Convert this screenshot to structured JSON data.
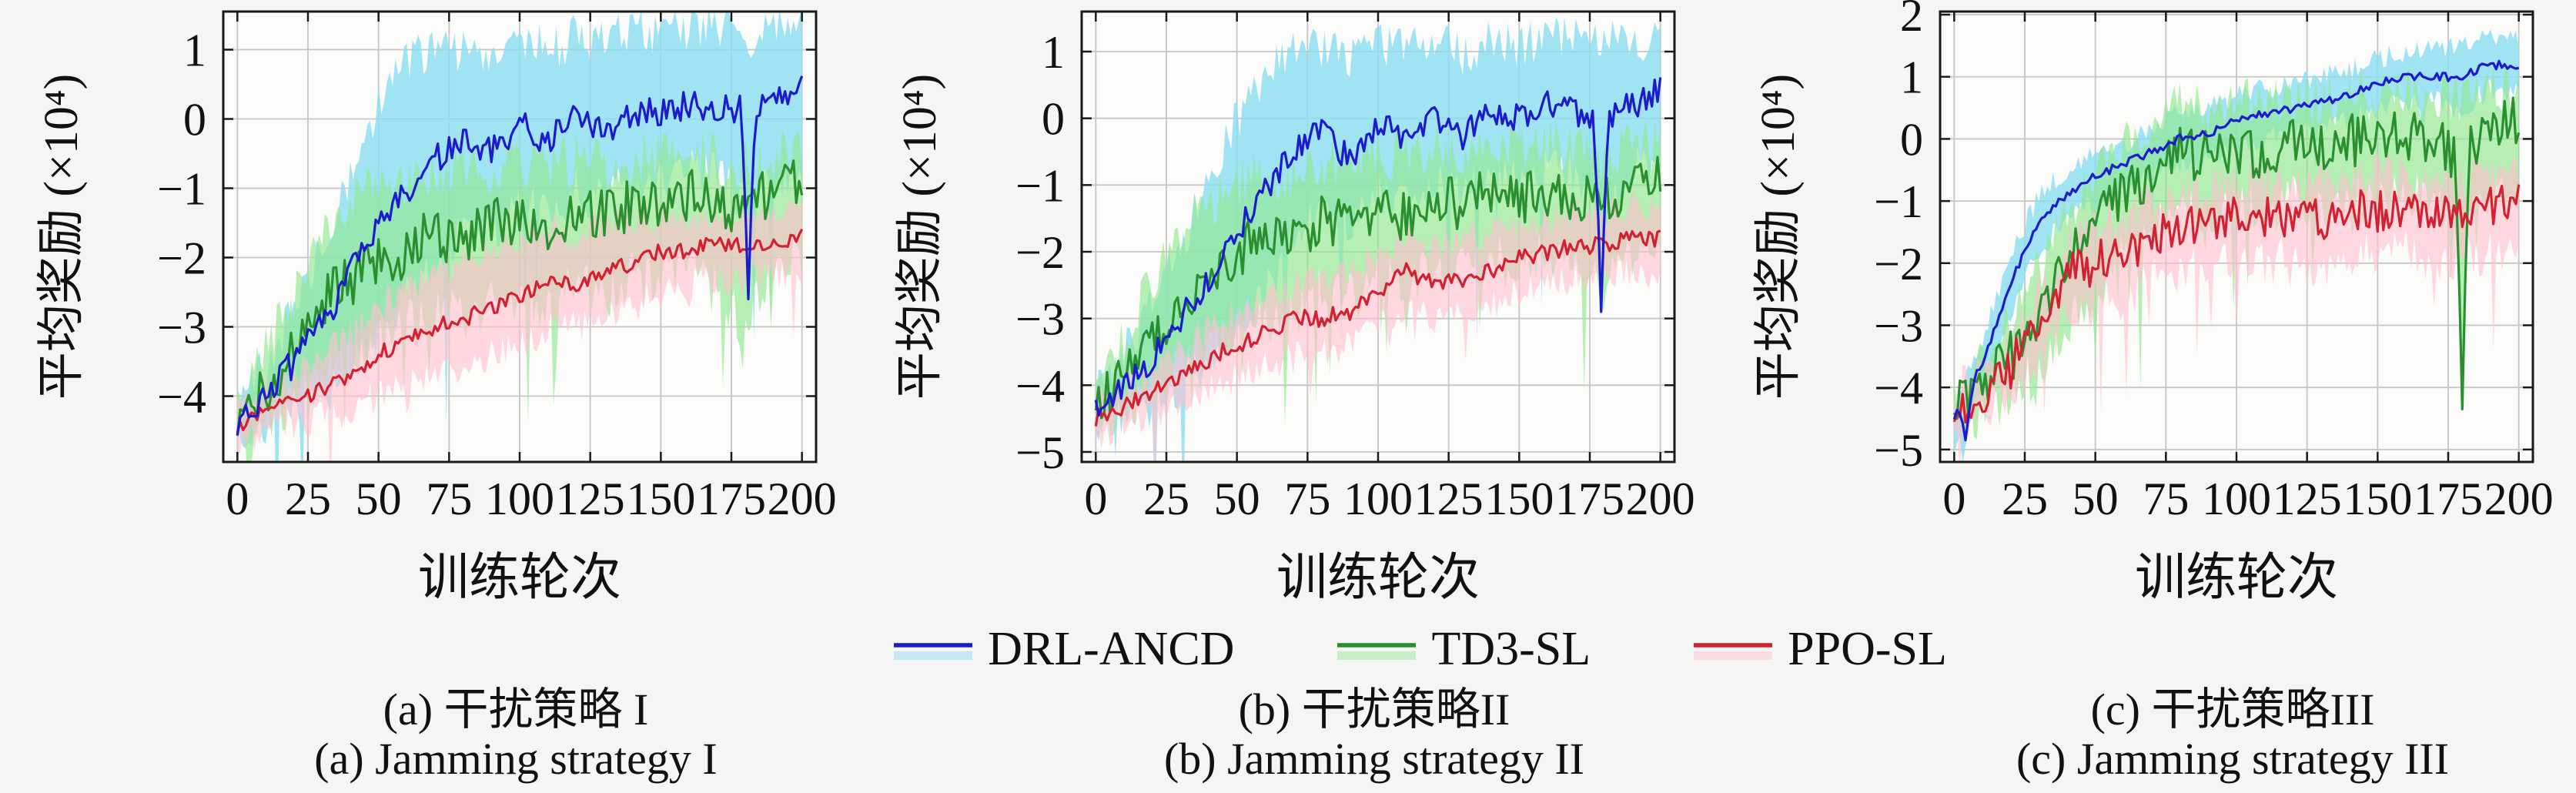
{
  "figure": {
    "background": "#f5f5f4",
    "plot_background": "#fbfbfa",
    "grid_color": "#c6c6c6",
    "axis_color": "#1a1a1a",
    "xlabel": "训练轮次",
    "ylabel": "平均奖励 (×10⁴)",
    "legend": [
      {
        "label": "DRL-ANCD",
        "color": "#1c1ccd",
        "band": "#8adef2"
      },
      {
        "label": "TD3-SL",
        "color": "#2a8f2e",
        "band": "#90e890"
      },
      {
        "label": "PPO-SL",
        "color": "#d42030",
        "band": "#ffc0ce"
      }
    ]
  },
  "captions": [
    {
      "zh": "(a) 干扰策略 I",
      "en": "(a) Jamming strategy I"
    },
    {
      "zh": "(b) 干扰策略II",
      "en": "(b) Jamming strategy II"
    },
    {
      "zh": "(c) 干扰策略III",
      "en": "(c) Jamming strategy III"
    }
  ],
  "chart_data": [
    {
      "id": "a",
      "type": "line",
      "xlabel": "训练轮次",
      "ylabel": "平均奖励 (×10⁴)",
      "xticks": [
        0,
        25,
        50,
        75,
        100,
        125,
        150,
        175,
        200
      ],
      "yticks": [
        1,
        0,
        -1,
        -2,
        -3,
        -4
      ],
      "xlim": [
        -5,
        205
      ],
      "ylim": [
        -4.95,
        1.55
      ],
      "anchor_step": 10,
      "series": [
        {
          "name": "DRL-ANCD",
          "color": "#1c1ccd",
          "band_color": "#8adef2",
          "band_opacity": 0.8,
          "seed": 7,
          "jitter_line": 0.22,
          "jitter_band": 0.35,
          "band_spike_prob": 0.05,
          "band_spike_depth": 2.4,
          "mean": [
            -4.35,
            -4.0,
            -3.5,
            -3.0,
            -2.2,
            -1.6,
            -1.0,
            -0.6,
            -0.3,
            -0.5,
            -0.1,
            -0.3,
            0.0,
            -0.2,
            0.1,
            0.1,
            0.2,
            0.2,
            0.1,
            0.2,
            0.5
          ],
          "band_upper": [
            -4.1,
            -3.6,
            -2.8,
            -1.8,
            -0.8,
            0.2,
            0.8,
            1.0,
            1.0,
            1.0,
            1.1,
            1.0,
            1.2,
            1.1,
            1.3,
            1.2,
            1.3,
            1.3,
            1.2,
            1.3,
            1.3
          ],
          "band_lower": [
            -4.6,
            -4.4,
            -4.2,
            -4.0,
            -3.6,
            -3.2,
            -2.6,
            -2.0,
            -1.6,
            -1.6,
            -1.2,
            -1.3,
            -1.0,
            -1.2,
            -0.9,
            -0.9,
            -0.8,
            -0.8,
            -1.2,
            -0.9,
            -0.6
          ],
          "spikes": [
            {
              "x": 181,
              "y": -2.6
            }
          ]
        },
        {
          "name": "TD3-SL",
          "color": "#2a8f2e",
          "band_color": "#90e890",
          "band_opacity": 0.66,
          "seed": 8,
          "jitter_line": 0.4,
          "jitter_band": 0.4,
          "band_spike_prob": 0.07,
          "band_spike_depth": 1.7,
          "mean": [
            -4.3,
            -3.9,
            -3.3,
            -2.6,
            -2.3,
            -2.1,
            -1.9,
            -1.6,
            -1.8,
            -1.5,
            -1.4,
            -1.6,
            -1.3,
            -1.4,
            -1.2,
            -1.3,
            -1.1,
            -1.3,
            -1.5,
            -0.9,
            -0.8
          ],
          "band_upper": [
            -4.0,
            -3.4,
            -2.6,
            -1.6,
            -1.2,
            -1.0,
            -0.9,
            -0.7,
            -0.8,
            -0.7,
            -0.6,
            -0.7,
            -0.6,
            -0.7,
            -0.6,
            -0.6,
            -0.5,
            -0.6,
            -0.7,
            -0.5,
            -0.5
          ],
          "band_lower": [
            -4.6,
            -4.3,
            -4.0,
            -3.6,
            -3.4,
            -3.2,
            -3.0,
            -2.8,
            -2.9,
            -2.6,
            -2.5,
            -2.7,
            -2.4,
            -2.5,
            -2.3,
            -2.4,
            -2.2,
            -2.5,
            -3.0,
            -2.0,
            -2.0
          ],
          "spikes": []
        },
        {
          "name": "PPO-SL",
          "color": "#d42030",
          "band_color": "#ffc0ce",
          "band_opacity": 0.62,
          "seed": 9,
          "jitter_line": 0.12,
          "jitter_band": 0.25,
          "band_spike_prob": 0.04,
          "band_spike_depth": 0.9,
          "mean": [
            -4.45,
            -4.2,
            -4.1,
            -3.9,
            -3.7,
            -3.4,
            -3.2,
            -3.0,
            -2.9,
            -2.7,
            -2.6,
            -2.3,
            -2.4,
            -2.2,
            -2.1,
            -1.9,
            -1.9,
            -1.8,
            -1.8,
            -1.8,
            -1.7
          ],
          "band_upper": [
            -4.2,
            -3.9,
            -3.7,
            -3.4,
            -3.1,
            -2.7,
            -2.4,
            -2.2,
            -2.0,
            -1.9,
            -1.8,
            -1.6,
            -1.7,
            -1.5,
            -1.5,
            -1.4,
            -1.4,
            -1.4,
            -1.4,
            -1.4,
            -1.3
          ],
          "band_lower": [
            -4.7,
            -4.5,
            -4.4,
            -4.3,
            -4.2,
            -4.0,
            -3.9,
            -3.7,
            -3.6,
            -3.4,
            -3.3,
            -3.0,
            -3.0,
            -2.8,
            -2.7,
            -2.5,
            -2.4,
            -2.3,
            -2.3,
            -2.2,
            -2.2
          ],
          "spikes": []
        }
      ]
    },
    {
      "id": "b",
      "type": "line",
      "xlabel": "训练轮次",
      "ylabel": "平均奖励 (×10⁴)",
      "xticks": [
        0,
        25,
        50,
        75,
        100,
        125,
        150,
        175,
        200
      ],
      "yticks": [
        1,
        0,
        -1,
        -2,
        -3,
        -4,
        -5
      ],
      "xlim": [
        -5,
        205
      ],
      "ylim": [
        -5.15,
        1.6
      ],
      "anchor_step": 10,
      "series": [
        {
          "name": "DRL-ANCD",
          "color": "#1c1ccd",
          "band_color": "#8adef2",
          "band_opacity": 0.8,
          "seed": 17,
          "jitter_line": 0.22,
          "jitter_band": 0.35,
          "band_spike_prob": 0.05,
          "band_spike_depth": 2.6,
          "mean": [
            -4.3,
            -4.0,
            -3.6,
            -3.0,
            -2.4,
            -1.7,
            -1.1,
            -0.5,
            -0.2,
            -0.6,
            -0.1,
            -0.3,
            0.0,
            -0.3,
            0.1,
            0.0,
            0.2,
            0.1,
            0.0,
            0.2,
            0.4
          ],
          "band_upper": [
            -4.0,
            -3.5,
            -2.8,
            -1.9,
            -1.0,
            0.0,
            0.7,
            1.0,
            1.0,
            0.9,
            1.1,
            1.0,
            1.1,
            1.0,
            1.2,
            1.1,
            1.2,
            1.2,
            1.1,
            1.2,
            1.2
          ],
          "band_lower": [
            -4.7,
            -4.5,
            -4.3,
            -4.0,
            -3.6,
            -3.1,
            -2.6,
            -1.9,
            -1.4,
            -1.6,
            -1.1,
            -1.3,
            -0.9,
            -1.2,
            -0.8,
            -0.9,
            -0.7,
            -0.8,
            -1.4,
            -0.8,
            -0.6
          ],
          "spikes": [
            {
              "x": 179,
              "y": -2.9
            }
          ]
        },
        {
          "name": "TD3-SL",
          "color": "#2a8f2e",
          "band_color": "#90e890",
          "band_opacity": 0.66,
          "seed": 18,
          "jitter_line": 0.38,
          "jitter_band": 0.4,
          "band_spike_prob": 0.07,
          "band_spike_depth": 1.7,
          "mean": [
            -4.3,
            -3.9,
            -3.4,
            -2.7,
            -2.4,
            -2.0,
            -1.8,
            -1.9,
            -1.5,
            -1.6,
            -1.3,
            -1.5,
            -1.2,
            -1.3,
            -1.1,
            -1.2,
            -1.1,
            -1.2,
            -1.3,
            -1.0,
            -0.9
          ],
          "band_upper": [
            -4.0,
            -3.3,
            -2.5,
            -1.7,
            -1.3,
            -1.0,
            -0.8,
            -0.9,
            -0.7,
            -0.7,
            -0.5,
            -0.6,
            -0.5,
            -0.5,
            -0.4,
            -0.5,
            -0.4,
            -0.5,
            -0.6,
            -0.4,
            -0.4
          ],
          "band_lower": [
            -4.7,
            -4.4,
            -4.1,
            -3.7,
            -3.5,
            -3.1,
            -2.9,
            -3.0,
            -2.5,
            -2.7,
            -2.3,
            -2.6,
            -2.2,
            -2.3,
            -2.1,
            -2.2,
            -2.1,
            -2.3,
            -2.6,
            -2.0,
            -1.9
          ],
          "spikes": []
        },
        {
          "name": "PPO-SL",
          "color": "#d42030",
          "band_color": "#ffc0ce",
          "band_opacity": 0.62,
          "seed": 19,
          "jitter_line": 0.13,
          "jitter_band": 0.25,
          "band_spike_prob": 0.04,
          "band_spike_depth": 0.9,
          "mean": [
            -4.5,
            -4.3,
            -4.1,
            -3.9,
            -3.6,
            -3.4,
            -3.2,
            -3.0,
            -3.0,
            -2.9,
            -2.6,
            -2.3,
            -2.5,
            -2.4,
            -2.3,
            -2.1,
            -2.0,
            -1.9,
            -1.9,
            -1.8,
            -1.8
          ],
          "band_upper": [
            -4.2,
            -4.0,
            -3.8,
            -3.5,
            -3.2,
            -2.9,
            -2.7,
            -2.5,
            -2.4,
            -2.3,
            -2.0,
            -1.8,
            -1.9,
            -1.8,
            -1.7,
            -1.6,
            -1.5,
            -1.4,
            -1.4,
            -1.3,
            -1.3
          ],
          "band_lower": [
            -4.8,
            -4.6,
            -4.4,
            -4.3,
            -4.1,
            -3.9,
            -3.7,
            -3.6,
            -3.5,
            -3.4,
            -3.1,
            -2.9,
            -3.0,
            -2.9,
            -2.8,
            -2.6,
            -2.5,
            -2.4,
            -2.4,
            -2.3,
            -2.3
          ],
          "spikes": []
        }
      ]
    },
    {
      "id": "c",
      "type": "line",
      "xlabel": "训练轮次",
      "ylabel": "平均奖励 (×10⁴)",
      "xticks": [
        0,
        25,
        50,
        75,
        100,
        125,
        150,
        175,
        200
      ],
      "yticks": [
        2,
        1,
        0,
        -1,
        -2,
        -3,
        -4,
        -5
      ],
      "xlim": [
        -5,
        205
      ],
      "ylim": [
        -5.2,
        2.05
      ],
      "anchor_step": 10,
      "series": [
        {
          "name": "DRL-ANCD",
          "color": "#1c1ccd",
          "band_color": "#8adef2",
          "band_opacity": 0.8,
          "seed": 27,
          "jitter_line": 0.07,
          "jitter_band": 0.18,
          "band_spike_prob": 0.02,
          "band_spike_depth": 0.8,
          "mean": [
            -4.5,
            -3.6,
            -2.3,
            -1.3,
            -0.9,
            -0.6,
            -0.4,
            -0.2,
            0.0,
            0.1,
            0.3,
            0.4,
            0.5,
            0.6,
            0.7,
            0.9,
            1.0,
            1.0,
            1.0,
            1.2,
            1.15
          ],
          "band_upper": [
            -4.3,
            -3.2,
            -1.9,
            -0.9,
            -0.5,
            -0.2,
            -0.1,
            0.2,
            0.4,
            0.5,
            0.7,
            0.8,
            0.9,
            1.0,
            1.1,
            1.3,
            1.4,
            1.5,
            1.5,
            1.7,
            1.6
          ],
          "band_lower": [
            -4.9,
            -4.1,
            -2.8,
            -1.8,
            -1.3,
            -1.0,
            -0.8,
            -0.6,
            -0.4,
            -0.3,
            -0.1,
            0.0,
            0.1,
            0.2,
            0.3,
            0.5,
            0.6,
            0.6,
            0.5,
            0.8,
            0.7
          ],
          "spikes": [
            {
              "x": 4,
              "y": -4.85
            }
          ]
        },
        {
          "name": "TD3-SL",
          "color": "#2a8f2e",
          "band_color": "#90e890",
          "band_opacity": 0.66,
          "seed": 28,
          "jitter_line": 0.42,
          "jitter_band": 0.45,
          "band_spike_prob": 0.08,
          "band_spike_depth": 2.2,
          "mean": [
            -4.35,
            -4.0,
            -3.5,
            -2.9,
            -2.0,
            -1.4,
            -0.9,
            -0.5,
            -0.2,
            -0.3,
            -0.1,
            -0.4,
            -0.1,
            -0.2,
            0.0,
            -0.1,
            0.1,
            -0.1,
            -0.3,
            0.1,
            0.3
          ],
          "band_upper": [
            -4.1,
            -3.6,
            -2.9,
            -2.1,
            -1.2,
            -0.6,
            -0.1,
            0.3,
            0.5,
            0.5,
            0.6,
            0.5,
            0.6,
            0.6,
            0.7,
            0.7,
            0.8,
            0.7,
            0.6,
            0.8,
            0.9
          ],
          "band_lower": [
            -4.6,
            -4.4,
            -4.1,
            -3.7,
            -3.0,
            -2.4,
            -1.9,
            -1.5,
            -1.2,
            -1.3,
            -1.0,
            -1.3,
            -1.0,
            -1.1,
            -0.9,
            -1.0,
            -0.8,
            -1.0,
            -1.6,
            -0.9,
            -0.7
          ],
          "spikes": [
            {
              "x": 180,
              "y": -4.35
            }
          ]
        },
        {
          "name": "PPO-SL",
          "color": "#d42030",
          "band_color": "#ffc0ce",
          "band_opacity": 0.62,
          "seed": 29,
          "jitter_line": 0.35,
          "jitter_band": 0.4,
          "band_spike_prob": 0.07,
          "band_spike_depth": 1.5,
          "mean": [
            -4.35,
            -4.1,
            -3.7,
            -3.0,
            -2.2,
            -2.0,
            -1.8,
            -1.6,
            -1.4,
            -1.5,
            -1.2,
            -1.3,
            -1.2,
            -1.3,
            -1.1,
            -1.2,
            -1.1,
            -1.3,
            -1.2,
            -1.1,
            -0.9
          ],
          "band_upper": [
            -4.1,
            -3.8,
            -3.3,
            -2.5,
            -1.7,
            -1.4,
            -1.2,
            -1.0,
            -0.8,
            -0.9,
            -0.7,
            -0.7,
            -0.7,
            -0.7,
            -0.6,
            -0.6,
            -0.6,
            -0.7,
            -0.6,
            -0.6,
            -0.5
          ],
          "band_lower": [
            -4.6,
            -4.4,
            -4.1,
            -3.6,
            -2.9,
            -2.7,
            -2.5,
            -2.3,
            -2.1,
            -2.2,
            -1.9,
            -2.0,
            -1.9,
            -2.1,
            -1.8,
            -1.9,
            -1.8,
            -2.1,
            -2.0,
            -1.8,
            -1.6
          ],
          "spikes": []
        }
      ]
    }
  ]
}
